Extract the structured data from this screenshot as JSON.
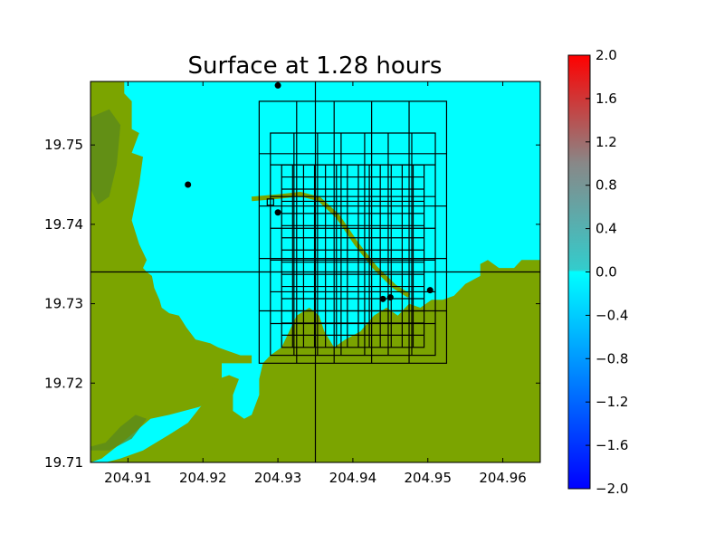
{
  "chart_data": {
    "type": "heatmap",
    "title": "Surface at 1.28 hours",
    "xlabel": "",
    "ylabel": "",
    "xlim": [
      204.905,
      204.965
    ],
    "ylim": [
      19.71,
      19.758
    ],
    "xticks": [
      204.91,
      204.92,
      204.93,
      204.94,
      204.95,
      204.96
    ],
    "xtick_labels": [
      "204.91",
      "204.92",
      "204.93",
      "204.94",
      "204.95",
      "204.96"
    ],
    "yticks": [
      19.71,
      19.72,
      19.73,
      19.74,
      19.75
    ],
    "ytick_labels": [
      "19.71",
      "19.72",
      "19.73",
      "19.74",
      "19.75"
    ],
    "grid": false,
    "colors": {
      "water": "#00FFFF",
      "land": "#7BA400",
      "land_dark": "#5C8A1A",
      "gauge": "#000000",
      "grid_lines": "#000000"
    },
    "land_polygons": [
      [
        [
          204.905,
          19.758
        ],
        [
          204.9095,
          19.758
        ],
        [
          204.9095,
          19.7565
        ],
        [
          204.9105,
          19.7555
        ],
        [
          204.9105,
          19.752
        ],
        [
          204.9115,
          19.7515
        ],
        [
          204.9105,
          19.749
        ],
        [
          204.912,
          19.7485
        ],
        [
          204.9115,
          19.745
        ],
        [
          204.9105,
          19.7405
        ],
        [
          204.9115,
          19.7375
        ],
        [
          204.9125,
          19.7355
        ],
        [
          204.912,
          19.7345
        ],
        [
          204.9125,
          19.734
        ],
        [
          204.9132,
          19.7335
        ],
        [
          204.9135,
          19.732
        ],
        [
          204.9142,
          19.7305
        ],
        [
          204.9145,
          19.7295
        ],
        [
          204.9155,
          19.7288
        ],
        [
          204.9168,
          19.7285
        ],
        [
          204.9178,
          19.727
        ],
        [
          204.919,
          19.7255
        ],
        [
          204.921,
          19.725
        ],
        [
          204.922,
          19.7245
        ],
        [
          204.9235,
          19.724
        ],
        [
          204.925,
          19.7235
        ],
        [
          204.9265,
          19.7235
        ],
        [
          204.9265,
          19.7225
        ],
        [
          204.9225,
          19.7225
        ],
        [
          204.9225,
          19.7205
        ],
        [
          204.9215,
          19.7185
        ],
        [
          204.9205,
          19.7175
        ],
        [
          204.9195,
          19.717
        ],
        [
          204.9175,
          19.7165
        ],
        [
          204.9155,
          19.716
        ],
        [
          204.913,
          19.7155
        ],
        [
          204.9105,
          19.7135
        ],
        [
          204.9085,
          19.712
        ],
        [
          204.9065,
          19.7105
        ],
        [
          204.905,
          19.71
        ]
      ],
      [
        [
          204.905,
          19.71
        ],
        [
          204.965,
          19.71
        ],
        [
          204.965,
          19.7355
        ],
        [
          204.9625,
          19.7355
        ],
        [
          204.9615,
          19.7345
        ],
        [
          204.9595,
          19.7345
        ],
        [
          204.958,
          19.7355
        ],
        [
          204.957,
          19.735
        ],
        [
          204.957,
          19.7335
        ],
        [
          204.955,
          19.7325
        ],
        [
          204.9535,
          19.731
        ],
        [
          204.952,
          19.7305
        ],
        [
          204.9505,
          19.7305
        ],
        [
          204.949,
          19.7295
        ],
        [
          204.9475,
          19.73
        ],
        [
          204.946,
          19.7285
        ],
        [
          204.9445,
          19.7295
        ],
        [
          204.9428,
          19.7285
        ],
        [
          204.941,
          19.7265
        ],
        [
          204.939,
          19.7255
        ],
        [
          204.9375,
          19.7245
        ],
        [
          204.9362,
          19.7265
        ],
        [
          204.9355,
          19.7285
        ],
        [
          204.9342,
          19.7295
        ],
        [
          204.9325,
          19.7285
        ],
        [
          204.9315,
          19.7265
        ],
        [
          204.9305,
          19.7245
        ],
        [
          204.929,
          19.7235
        ],
        [
          204.928,
          19.7225
        ],
        [
          204.9275,
          19.7205
        ],
        [
          204.9275,
          19.7185
        ],
        [
          204.9265,
          19.716
        ],
        [
          204.9255,
          19.7155
        ],
        [
          204.924,
          19.7165
        ],
        [
          204.924,
          19.7185
        ],
        [
          204.9248,
          19.7205
        ],
        [
          204.9235,
          19.721
        ],
        [
          204.922,
          19.7205
        ],
        [
          204.9205,
          19.718
        ],
        [
          204.918,
          19.715
        ],
        [
          204.9155,
          19.7135
        ],
        [
          204.912,
          19.7115
        ],
        [
          204.909,
          19.7105
        ],
        [
          204.907,
          19.71
        ]
      ]
    ],
    "land_dark_polygons": [
      [
        [
          204.905,
          19.7115
        ],
        [
          204.9075,
          19.7115
        ],
        [
          204.9105,
          19.713
        ],
        [
          204.9125,
          19.7155
        ],
        [
          204.911,
          19.716
        ],
        [
          204.909,
          19.7145
        ],
        [
          204.907,
          19.7125
        ],
        [
          204.905,
          19.712
        ]
      ],
      [
        [
          204.905,
          19.7535
        ],
        [
          204.9075,
          19.7545
        ],
        [
          204.909,
          19.7525
        ],
        [
          204.9085,
          19.7475
        ],
        [
          204.9075,
          19.7435
        ],
        [
          204.906,
          19.7425
        ],
        [
          204.905,
          19.7445
        ]
      ]
    ],
    "channel": [
      [
        204.9265,
        19.7432
      ],
      [
        204.93,
        19.7435
      ],
      [
        204.933,
        19.7438
      ],
      [
        204.9355,
        19.7432
      ],
      [
        204.938,
        19.741
      ],
      [
        204.9405,
        19.7375
      ],
      [
        204.943,
        19.7345
      ],
      [
        204.9455,
        19.7322
      ],
      [
        204.9475,
        19.731
      ]
    ],
    "grid_patches": [
      {
        "x0": 204.905,
        "x1": 204.965,
        "y0": 19.71,
        "y1": 19.758,
        "nx": 2,
        "ny": 2,
        "level": 1
      },
      {
        "x0": 204.9275,
        "x1": 204.9525,
        "y0": 19.7225,
        "y1": 19.7555,
        "nx": 5,
        "ny": 5,
        "level": 2
      },
      {
        "x0": 204.929,
        "x1": 204.951,
        "y0": 19.7235,
        "y1": 19.7515,
        "nx": 7,
        "ny": 7,
        "level": 3
      },
      {
        "x0": 204.9305,
        "x1": 204.9495,
        "y0": 19.7245,
        "y1": 19.7475,
        "nx": 13,
        "ny": 15,
        "level": 4
      }
    ],
    "gauges": [
      {
        "x": 204.93,
        "y": 19.7575,
        "label": ""
      },
      {
        "x": 204.918,
        "y": 19.745,
        "label": ""
      },
      {
        "x": 204.93,
        "y": 19.7415,
        "label": ""
      },
      {
        "x": 204.944,
        "y": 19.7306,
        "label": ""
      },
      {
        "x": 204.945,
        "y": 19.7308,
        "label": ""
      },
      {
        "x": 204.9503,
        "y": 19.7317,
        "label": ""
      }
    ],
    "markers": [
      {
        "x": 204.929,
        "y": 19.7428,
        "shape": "square"
      }
    ],
    "colorbar": {
      "min": -2.0,
      "max": 2.0,
      "ticks": [
        "2.0",
        "1.6",
        "1.2",
        "0.8",
        "0.4",
        "0.0",
        "−0.4",
        "−0.8",
        "−1.2",
        "−1.6",
        "−2.0"
      ],
      "tick_values": [
        2.0,
        1.6,
        1.2,
        0.8,
        0.4,
        0.0,
        -0.4,
        -0.8,
        -1.2,
        -1.6,
        -2.0
      ],
      "colors": [
        "#0000FF",
        "#00FFFF",
        "#FF0000"
      ]
    }
  }
}
